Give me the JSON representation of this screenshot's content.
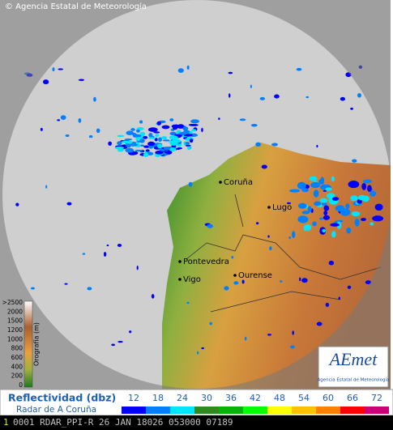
{
  "header": {
    "copyright": "© Agencia Estatal de Meteorología"
  },
  "map": {
    "cities": [
      {
        "label": "Coruña"
      },
      {
        "label": "Lugo"
      },
      {
        "label": "Pontevedra"
      },
      {
        "label": "Vigo"
      },
      {
        "label": "Ourense"
      }
    ]
  },
  "orography": {
    "title": "Orografía (m)",
    "labels": [
      ">2500",
      "2000",
      "1500",
      "1200",
      "1000",
      "800",
      "600",
      "400",
      "200",
      "0"
    ]
  },
  "logo": {
    "mark": "AEmet",
    "text": "Agencia Estatal de Meteorología"
  },
  "legend": {
    "title": "Reflectividad (dbz)",
    "subtitle": "Radar de A Coruña",
    "bins": [
      {
        "value": 12,
        "color": "#0000ff"
      },
      {
        "value": 18,
        "color": "#0080ff"
      },
      {
        "value": 24,
        "color": "#00e5ff"
      },
      {
        "value": 30,
        "color": "#2e8b20"
      },
      {
        "value": 36,
        "color": "#00b400"
      },
      {
        "value": 42,
        "color": "#00ff00"
      },
      {
        "value": 48,
        "color": "#ffff00"
      },
      {
        "value": 54,
        "color": "#ffc000"
      },
      {
        "value": 60,
        "color": "#ff8000"
      },
      {
        "value": 66,
        "color": "#ff0000"
      },
      {
        "value": 72,
        "color": "#c8007a"
      }
    ]
  },
  "footer": {
    "index": "1",
    "text": "0001 RDAR_PPI-R   26 JAN 18026 053000 07189"
  }
}
